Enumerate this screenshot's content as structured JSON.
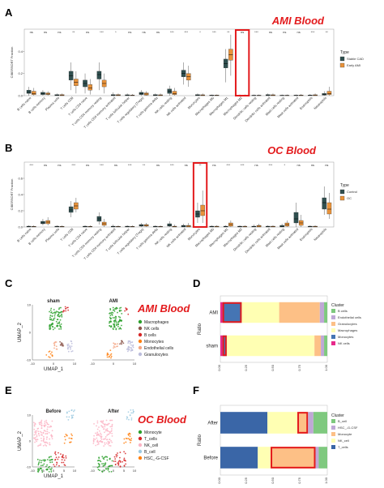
{
  "panels": {
    "A": {
      "letter": "A",
      "title": "AMI Blood"
    },
    "B": {
      "letter": "B",
      "title": "OC Blood"
    },
    "C": {
      "letter": "C",
      "title": "AMI Blood"
    },
    "D": {
      "letter": "D"
    },
    "E": {
      "letter": "E",
      "title": "OC Blood"
    },
    "F": {
      "letter": "F"
    }
  },
  "colors": {
    "accent_red": "#e31a1c",
    "stable_cad": "#2f4f4f",
    "early_ami": "#e8923a",
    "control": "#2f4f4f",
    "oc": "#e8923a"
  },
  "chart_data": [
    {
      "id": "A",
      "type": "box",
      "ylabel": "CIBERSORT Fraction",
      "ylim": [
        0,
        0.6
      ],
      "yticks": [
        0.0,
        0.2,
        0.4
      ],
      "legend": {
        "title": "Type",
        "entries": [
          "Stable CAD",
          "Early AMI"
        ],
        "position": "right"
      },
      "highlight_index": 15,
      "categories": [
        "B cells naive",
        "B cells memory",
        "Plasma cells",
        "T cells CD8",
        "T cells CD4 naive",
        "T cells CD4 memory resting",
        "T cells CD4 memory activated",
        "T cells follicular helper",
        "T cells regulatory (Tregs)",
        "T cells gamma delta",
        "NK cells resting",
        "NK cells activated",
        "Monocytes",
        "Macrophages M0",
        "Macrophages M1",
        "Macrophages M2",
        "Dendritic cells resting",
        "Dendritic cells activated",
        "Mast cells resting",
        "Mast cells activated",
        "Eosinophils",
        "Neutrophils"
      ],
      "significance": [
        "ns",
        "ns",
        "ns",
        "**",
        "ns",
        "***",
        "*",
        "ns",
        "ns",
        "ns",
        "***",
        "***",
        "*",
        "***",
        "**",
        "ns",
        "***",
        "ns",
        "ns",
        "ns",
        "***",
        "**"
      ],
      "series": [
        {
          "name": "Stable CAD",
          "boxes": [
            [
              0.0,
              0.02,
              0.03,
              0.05,
              0.08
            ],
            [
              0.0,
              0.01,
              0.02,
              0.03,
              0.05
            ],
            [
              0.0,
              0.0,
              0.005,
              0.01,
              0.02
            ],
            [
              0.05,
              0.14,
              0.18,
              0.22,
              0.3
            ],
            [
              0.02,
              0.08,
              0.11,
              0.14,
              0.2
            ],
            [
              0.05,
              0.15,
              0.19,
              0.22,
              0.3
            ],
            [
              0.0,
              0.0,
              0.005,
              0.01,
              0.03
            ],
            [
              0.0,
              0.0,
              0.003,
              0.008,
              0.02
            ],
            [
              0.0,
              0.01,
              0.02,
              0.03,
              0.05
            ],
            [
              0.0,
              0.0,
              0.005,
              0.01,
              0.02
            ],
            [
              0.0,
              0.02,
              0.04,
              0.06,
              0.09
            ],
            [
              0.1,
              0.17,
              0.2,
              0.23,
              0.3
            ],
            [
              0.0,
              0.0,
              0.005,
              0.01,
              0.02
            ],
            [
              0.0,
              0.0,
              0.003,
              0.005,
              0.01
            ],
            [
              0.12,
              0.25,
              0.29,
              0.33,
              0.42
            ],
            [
              0.0,
              0.0,
              0.002,
              0.005,
              0.01
            ],
            [
              0.0,
              0.0,
              0.002,
              0.004,
              0.01
            ],
            [
              0.0,
              0.0,
              0.005,
              0.01,
              0.02
            ],
            [
              0.0,
              0.0,
              0.002,
              0.004,
              0.01
            ],
            [
              0.0,
              0.0,
              0.002,
              0.005,
              0.01
            ],
            [
              0.0,
              0.0,
              0.003,
              0.006,
              0.015
            ],
            [
              0.0,
              0.005,
              0.01,
              0.02,
              0.04
            ]
          ]
        },
        {
          "name": "Early AMI",
          "boxes": [
            [
              0.0,
              0.01,
              0.02,
              0.04,
              0.07
            ],
            [
              0.0,
              0.01,
              0.015,
              0.025,
              0.04
            ],
            [
              0.0,
              0.0,
              0.004,
              0.01,
              0.02
            ],
            [
              0.02,
              0.09,
              0.12,
              0.15,
              0.22
            ],
            [
              0.01,
              0.05,
              0.07,
              0.1,
              0.15
            ],
            [
              0.02,
              0.08,
              0.11,
              0.14,
              0.2
            ],
            [
              0.0,
              0.0,
              0.005,
              0.01,
              0.02
            ],
            [
              0.0,
              0.0,
              0.003,
              0.006,
              0.015
            ],
            [
              0.0,
              0.005,
              0.015,
              0.025,
              0.04
            ],
            [
              0.0,
              0.0,
              0.004,
              0.008,
              0.02
            ],
            [
              0.0,
              0.01,
              0.02,
              0.04,
              0.07
            ],
            [
              0.08,
              0.14,
              0.17,
              0.2,
              0.27
            ],
            [
              0.0,
              0.0,
              0.004,
              0.008,
              0.02
            ],
            [
              0.0,
              0.0,
              0.003,
              0.005,
              0.01
            ],
            [
              0.18,
              0.32,
              0.37,
              0.42,
              0.55
            ],
            [
              0.0,
              0.0,
              0.002,
              0.005,
              0.01
            ],
            [
              0.0,
              0.0,
              0.002,
              0.004,
              0.01
            ],
            [
              0.0,
              0.0,
              0.004,
              0.008,
              0.02
            ],
            [
              0.0,
              0.0,
              0.002,
              0.004,
              0.01
            ],
            [
              0.0,
              0.0,
              0.003,
              0.006,
              0.015
            ],
            [
              0.0,
              0.0,
              0.004,
              0.008,
              0.02
            ],
            [
              0.0,
              0.01,
              0.02,
              0.04,
              0.08
            ]
          ]
        }
      ]
    },
    {
      "id": "B",
      "type": "box",
      "ylabel": "CIBERSORT Fraction",
      "ylim": [
        0,
        0.8
      ],
      "yticks": [
        0.0,
        0.2,
        0.4,
        0.6
      ],
      "legend": {
        "title": "Type",
        "entries": [
          "Control",
          "OC"
        ],
        "position": "right"
      },
      "highlight_index": 12,
      "categories": [
        "B cells naive",
        "B cells memory",
        "Plasma cells",
        "T cells CD8",
        "T cells CD4 naive",
        "T cells CD4 memory resting",
        "T cells CD4 memory activated",
        "T cells follicular helper",
        "T cells regulatory (Tregs)",
        "T cells gamma delta",
        "NK cells resting",
        "NK cells activated",
        "Monocytes",
        "Macrophages M0",
        "Macrophages M1",
        "Macrophages M2",
        "Dendritic cells resting",
        "Dendritic cells activated",
        "Mast cells resting",
        "Mast cells activated",
        "Eosinophils",
        "Neutrophils"
      ],
      "significance": [
        "***",
        "ns",
        "ns",
        "***",
        "ns",
        "***",
        "ns",
        "***",
        "**",
        "ns",
        "***",
        "ns",
        "**",
        "ns",
        "***",
        "***",
        "ns",
        "***",
        "*",
        "ns",
        "ns",
        "ns"
      ],
      "series": [
        {
          "name": "Control",
          "boxes": [
            [
              0.0,
              0.0,
              0.005,
              0.01,
              0.02
            ],
            [
              0.02,
              0.04,
              0.05,
              0.07,
              0.1
            ],
            [
              0.0,
              0.0,
              0.005,
              0.01,
              0.02
            ],
            [
              0.12,
              0.18,
              0.21,
              0.25,
              0.32
            ],
            [
              0.0,
              0.0,
              0.005,
              0.01,
              0.02
            ],
            [
              0.03,
              0.07,
              0.1,
              0.13,
              0.18
            ],
            [
              0.0,
              0.0,
              0.005,
              0.01,
              0.03
            ],
            [
              0.0,
              0.0,
              0.005,
              0.01,
              0.02
            ],
            [
              0.0,
              0.01,
              0.02,
              0.03,
              0.05
            ],
            [
              0.0,
              0.0,
              0.005,
              0.01,
              0.02
            ],
            [
              0.0,
              0.01,
              0.02,
              0.04,
              0.07
            ],
            [
              0.0,
              0.0,
              0.01,
              0.02,
              0.04
            ],
            [
              0.05,
              0.12,
              0.16,
              0.2,
              0.3
            ],
            [
              0.0,
              0.0,
              0.005,
              0.01,
              0.02
            ],
            [
              0.0,
              0.0,
              0.005,
              0.01,
              0.02
            ],
            [
              0.0,
              0.0,
              0.005,
              0.01,
              0.02
            ],
            [
              0.0,
              0.0,
              0.005,
              0.01,
              0.03
            ],
            [
              0.0,
              0.0,
              0.005,
              0.01,
              0.02
            ],
            [
              0.0,
              0.0,
              0.005,
              0.02,
              0.04
            ],
            [
              0.0,
              0.05,
              0.1,
              0.18,
              0.3
            ],
            [
              0.0,
              0.0,
              0.005,
              0.01,
              0.02
            ],
            [
              0.15,
              0.22,
              0.3,
              0.36,
              0.5
            ]
          ]
        },
        {
          "name": "OC",
          "boxes": [
            [
              0.0,
              0.0,
              0.004,
              0.008,
              0.02
            ],
            [
              0.02,
              0.04,
              0.06,
              0.08,
              0.12
            ],
            [
              0.0,
              0.0,
              0.004,
              0.008,
              0.02
            ],
            [
              0.18,
              0.22,
              0.26,
              0.3,
              0.36
            ],
            [
              0.0,
              0.0,
              0.004,
              0.008,
              0.02
            ],
            [
              0.0,
              0.02,
              0.04,
              0.06,
              0.1
            ],
            [
              0.0,
              0.0,
              0.004,
              0.008,
              0.02
            ],
            [
              0.0,
              0.0,
              0.004,
              0.008,
              0.02
            ],
            [
              0.0,
              0.01,
              0.02,
              0.03,
              0.05
            ],
            [
              0.0,
              0.0,
              0.004,
              0.008,
              0.02
            ],
            [
              0.0,
              0.0,
              0.005,
              0.01,
              0.03
            ],
            [
              0.0,
              0.0,
              0.01,
              0.02,
              0.05
            ],
            [
              0.05,
              0.14,
              0.2,
              0.27,
              0.45
            ],
            [
              0.0,
              0.0,
              0.005,
              0.01,
              0.02
            ],
            [
              0.0,
              0.01,
              0.03,
              0.05,
              0.08
            ],
            [
              0.0,
              0.0,
              0.005,
              0.01,
              0.02
            ],
            [
              0.0,
              0.0,
              0.01,
              0.02,
              0.04
            ],
            [
              0.0,
              0.0,
              0.005,
              0.01,
              0.02
            ],
            [
              0.0,
              0.01,
              0.03,
              0.05,
              0.08
            ],
            [
              0.0,
              0.02,
              0.05,
              0.08,
              0.15
            ],
            [
              0.0,
              0.0,
              0.005,
              0.01,
              0.02
            ],
            [
              0.1,
              0.16,
              0.22,
              0.3,
              0.42
            ]
          ]
        }
      ]
    },
    {
      "id": "C",
      "type": "scatter",
      "subtitles": [
        "sham",
        "AMI"
      ],
      "xlabel": "UMAP_1",
      "ylabel": "UMAP_2",
      "xticks": [
        -10,
        0,
        10
      ],
      "yticks": [
        -10,
        0,
        10
      ],
      "legend": {
        "entries": [
          "Macrophages",
          "NK cells",
          "B cells",
          "Monocytes",
          "Endothelial cells",
          "Granulocytes"
        ],
        "colors": [
          "#2ca02c",
          "#8c564b",
          "#d62728",
          "#ff7f0e",
          "#f4a582",
          "#bcbddc"
        ],
        "position": "right"
      }
    },
    {
      "id": "D",
      "type": "bar",
      "orientation": "horizontal",
      "stacked": true,
      "xlabel": "",
      "ylabel": "Ratio",
      "xlim": [
        0,
        1
      ],
      "xticks": [
        "0.00",
        "0.25",
        "0.50",
        "0.75",
        "1.00"
      ],
      "categories": [
        "AMI",
        "sham"
      ],
      "legend": {
        "title": "Cluster",
        "entries": [
          "B cells",
          "Endothelial cells",
          "Granulocytes",
          "Macrophages",
          "Monocytes",
          "NK cells"
        ],
        "position": "right"
      },
      "series": [
        {
          "name": "NK cells",
          "color": "#e7298a",
          "values": [
            0.02,
            0.02
          ]
        },
        {
          "name": "Monocytes",
          "color": "#4575b4",
          "values": [
            0.18,
            0.04
          ]
        },
        {
          "name": "Macrophages",
          "color": "#ffffb3",
          "values": [
            0.35,
            0.82
          ]
        },
        {
          "name": "Granulocytes",
          "color": "#fdc086",
          "values": [
            0.38,
            0.06
          ]
        },
        {
          "name": "Endothelial cells",
          "color": "#bfa8d6",
          "values": [
            0.04,
            0.03
          ]
        },
        {
          "name": "B cells",
          "color": "#7fc97f",
          "values": [
            0.03,
            0.03
          ]
        }
      ],
      "highlight": "Monocytes"
    },
    {
      "id": "E",
      "type": "scatter",
      "subtitles": [
        "Before",
        "After"
      ],
      "xlabel": "UMAP_1",
      "ylabel": "UMAP_2",
      "xticks": [
        -10,
        -5,
        0,
        5,
        10
      ],
      "yticks": [
        -10,
        0,
        10
      ],
      "legend": {
        "entries": [
          "Monocyte",
          "T_cells",
          "NK_cell",
          "B_cell",
          "HSC_-G-CSF"
        ],
        "colors": [
          "#2ca02c",
          "#d62728",
          "#fbb4c4",
          "#9ecae1",
          "#ff7f0e"
        ],
        "position": "right"
      }
    },
    {
      "id": "F",
      "type": "bar",
      "orientation": "horizontal",
      "stacked": true,
      "xlabel": "",
      "ylabel": "Ratio",
      "xlim": [
        0,
        1
      ],
      "xticks": [
        "0.00",
        "0.25",
        "0.50",
        "0.75",
        "1.00"
      ],
      "categories": [
        "After",
        "Before"
      ],
      "legend": {
        "title": "Cluster",
        "entries": [
          "B_cell",
          "HSC_-G-CSF",
          "Monocyte",
          "NK_cell",
          "T_cells"
        ],
        "position": "right"
      },
      "series": [
        {
          "name": "T_cells",
          "color": "#3a66a7",
          "values": [
            0.44,
            0.35
          ]
        },
        {
          "name": "NK_cell",
          "color": "#ffffb3",
          "values": [
            0.28,
            0.12
          ]
        },
        {
          "name": "Monocyte",
          "color": "#fdc086",
          "values": [
            0.1,
            0.42
          ]
        },
        {
          "name": "HSC_-G-CSF",
          "color": "#bfa8d6",
          "values": [
            0.05,
            0.03
          ]
        },
        {
          "name": "B_cell",
          "color": "#7fc97f",
          "values": [
            0.13,
            0.08
          ]
        }
      ],
      "highlight": "Monocyte"
    }
  ]
}
